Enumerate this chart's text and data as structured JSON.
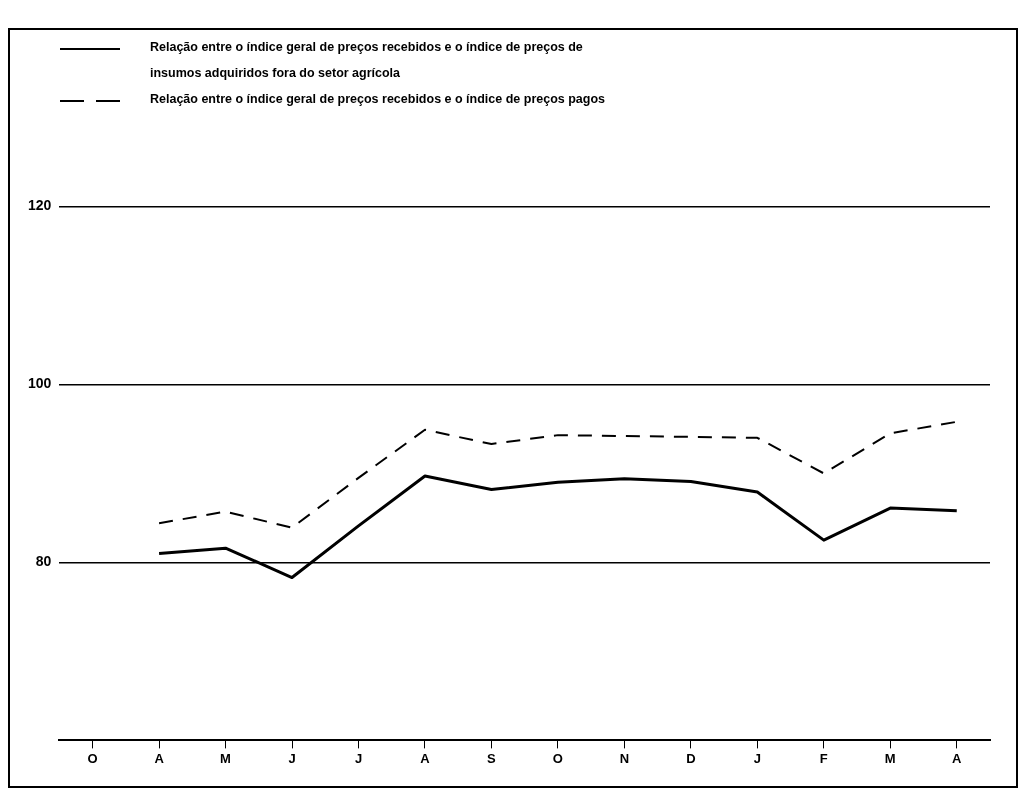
{
  "chart_data": {
    "type": "line",
    "categories": [
      "O",
      "A",
      "M",
      "J",
      "J",
      "A",
      "S",
      "O",
      "N",
      "D",
      "J",
      "F",
      "M",
      "A"
    ],
    "series": [
      {
        "name": "Relação entre o índice geral de preços recebidos e o índice de preços de insumos adquiridos fora do setor agrícola",
        "color": "#000000",
        "line_style": "solid",
        "values": [
          null,
          81.0,
          81.6,
          78.3,
          84.1,
          89.7,
          88.2,
          89.0,
          89.4,
          89.1,
          87.9,
          82.5,
          86.1,
          85.8
        ]
      },
      {
        "name": "Relação entre o índice geral de preços recebidos e o índice de preços pagos",
        "color": "#000000",
        "line_style": "dashed",
        "values": [
          null,
          84.4,
          85.7,
          83.9,
          89.5,
          94.9,
          93.3,
          94.3,
          94.2,
          94.1,
          94.0,
          90.0,
          94.5,
          95.8
        ]
      }
    ],
    "ylim": [
      60,
      120
    ],
    "yticks": [
      80,
      100,
      120
    ],
    "grid": "y",
    "legend": "top left",
    "marker": "none"
  }
}
